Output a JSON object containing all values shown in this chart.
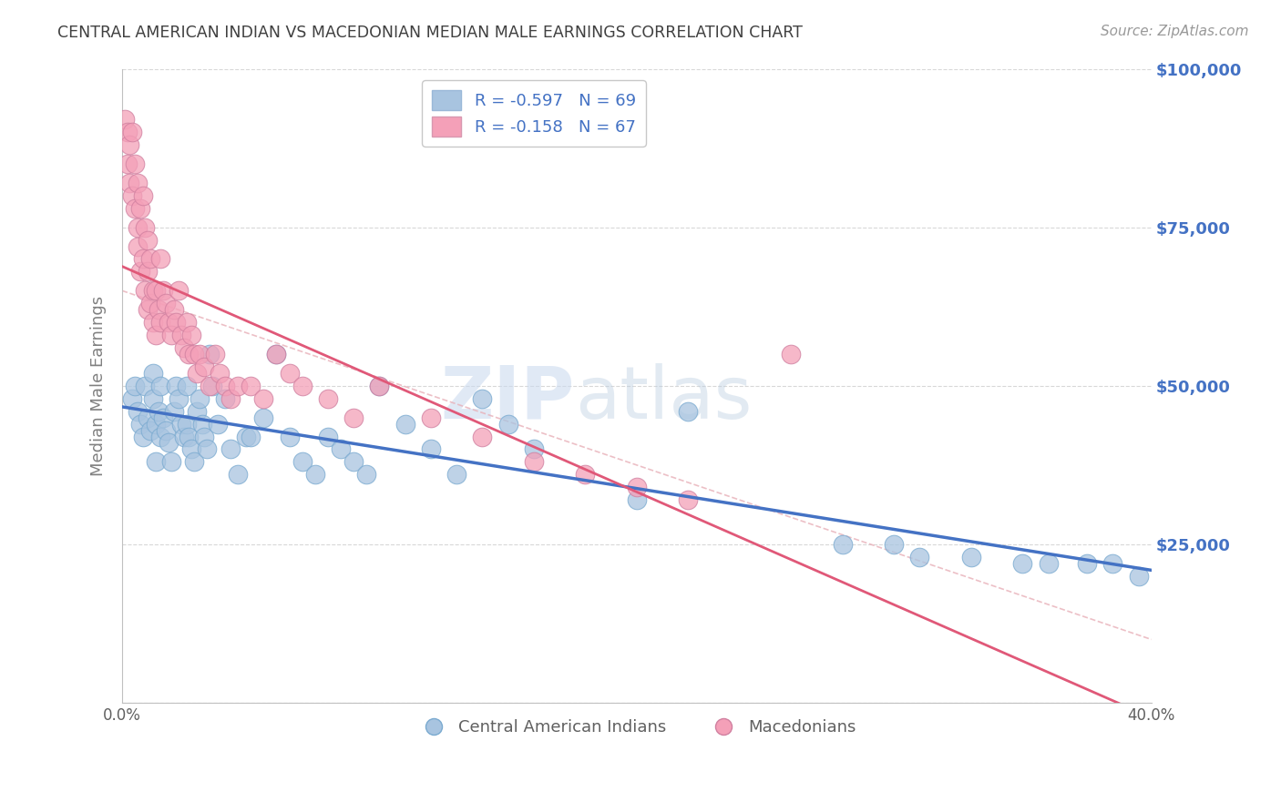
{
  "title": "CENTRAL AMERICAN INDIAN VS MACEDONIAN MEDIAN MALE EARNINGS CORRELATION CHART",
  "source": "Source: ZipAtlas.com",
  "ylabel": "Median Male Earnings",
  "watermark_zip": "ZIP",
  "watermark_atlas": "atlas",
  "legend_blue_r": "R = -0.597",
  "legend_blue_n": "N = 69",
  "legend_pink_r": "R = -0.158",
  "legend_pink_n": "N = 67",
  "legend_blue_label": "Central American Indians",
  "legend_pink_label": "Macedonians",
  "xlim": [
    0.0,
    0.4
  ],
  "ylim": [
    0,
    100000
  ],
  "yticks": [
    0,
    25000,
    50000,
    75000,
    100000
  ],
  "ytick_labels": [
    "",
    "$25,000",
    "$50,000",
    "$75,000",
    "$100,000"
  ],
  "xticks": [
    0.0,
    0.05,
    0.1,
    0.15,
    0.2,
    0.25,
    0.3,
    0.35,
    0.4
  ],
  "xtick_labels": [
    "0.0%",
    "",
    "",
    "",
    "",
    "",
    "",
    "",
    "40.0%"
  ],
  "blue_color": "#a8c4e0",
  "pink_color": "#f4a0b8",
  "blue_line_color": "#4472c4",
  "pink_line_color": "#e05878",
  "axis_label_color": "#4472c4",
  "title_color": "#404040",
  "background_color": "#ffffff",
  "blue_scatter_x": [
    0.004,
    0.005,
    0.006,
    0.007,
    0.008,
    0.009,
    0.01,
    0.011,
    0.012,
    0.012,
    0.013,
    0.013,
    0.014,
    0.015,
    0.015,
    0.016,
    0.017,
    0.018,
    0.019,
    0.02,
    0.021,
    0.022,
    0.023,
    0.024,
    0.025,
    0.025,
    0.026,
    0.027,
    0.028,
    0.029,
    0.03,
    0.031,
    0.032,
    0.033,
    0.034,
    0.035,
    0.037,
    0.04,
    0.042,
    0.045,
    0.048,
    0.05,
    0.055,
    0.06,
    0.065,
    0.07,
    0.075,
    0.08,
    0.085,
    0.09,
    0.095,
    0.1,
    0.11,
    0.12,
    0.13,
    0.14,
    0.15,
    0.16,
    0.2,
    0.22,
    0.28,
    0.3,
    0.31,
    0.33,
    0.35,
    0.36,
    0.375,
    0.385,
    0.395
  ],
  "blue_scatter_y": [
    48000,
    50000,
    46000,
    44000,
    42000,
    50000,
    45000,
    43000,
    52000,
    48000,
    44000,
    38000,
    46000,
    50000,
    42000,
    45000,
    43000,
    41000,
    38000,
    46000,
    50000,
    48000,
    44000,
    42000,
    50000,
    44000,
    42000,
    40000,
    38000,
    46000,
    48000,
    44000,
    42000,
    40000,
    55000,
    50000,
    44000,
    48000,
    40000,
    36000,
    42000,
    42000,
    45000,
    55000,
    42000,
    38000,
    36000,
    42000,
    40000,
    38000,
    36000,
    50000,
    44000,
    40000,
    36000,
    48000,
    44000,
    40000,
    32000,
    46000,
    25000,
    25000,
    23000,
    23000,
    22000,
    22000,
    22000,
    22000,
    20000
  ],
  "pink_scatter_x": [
    0.001,
    0.002,
    0.002,
    0.003,
    0.003,
    0.004,
    0.004,
    0.005,
    0.005,
    0.006,
    0.006,
    0.006,
    0.007,
    0.007,
    0.008,
    0.008,
    0.009,
    0.009,
    0.01,
    0.01,
    0.01,
    0.011,
    0.011,
    0.012,
    0.012,
    0.013,
    0.013,
    0.014,
    0.015,
    0.015,
    0.016,
    0.017,
    0.018,
    0.019,
    0.02,
    0.021,
    0.022,
    0.023,
    0.024,
    0.025,
    0.026,
    0.027,
    0.028,
    0.029,
    0.03,
    0.032,
    0.034,
    0.036,
    0.038,
    0.04,
    0.042,
    0.045,
    0.05,
    0.055,
    0.06,
    0.065,
    0.07,
    0.08,
    0.09,
    0.1,
    0.12,
    0.14,
    0.16,
    0.18,
    0.2,
    0.22,
    0.26
  ],
  "pink_scatter_y": [
    92000,
    90000,
    85000,
    88000,
    82000,
    90000,
    80000,
    85000,
    78000,
    82000,
    75000,
    72000,
    78000,
    68000,
    80000,
    70000,
    75000,
    65000,
    73000,
    68000,
    62000,
    70000,
    63000,
    65000,
    60000,
    65000,
    58000,
    62000,
    70000,
    60000,
    65000,
    63000,
    60000,
    58000,
    62000,
    60000,
    65000,
    58000,
    56000,
    60000,
    55000,
    58000,
    55000,
    52000,
    55000,
    53000,
    50000,
    55000,
    52000,
    50000,
    48000,
    50000,
    50000,
    48000,
    55000,
    52000,
    50000,
    48000,
    45000,
    50000,
    45000,
    42000,
    38000,
    36000,
    34000,
    32000,
    55000
  ]
}
